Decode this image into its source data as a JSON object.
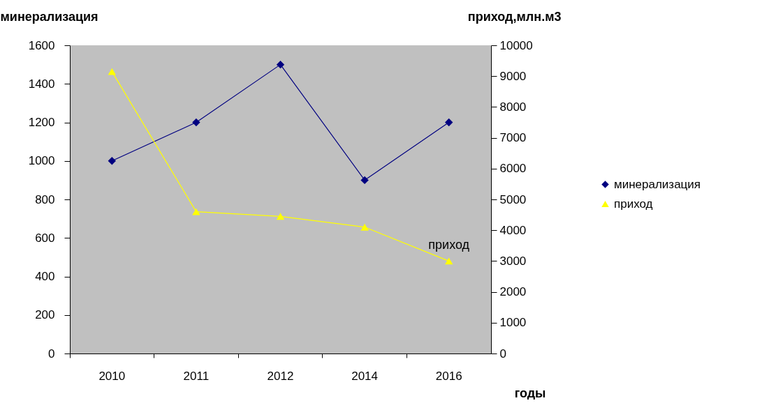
{
  "chart_data": {
    "type": "line",
    "ylabel": "минерализация",
    "y2label": "приход,млн.м3",
    "xlabel": "годы",
    "categories": [
      "2010",
      "2011",
      "2012",
      "2014",
      "2016"
    ],
    "series": [
      {
        "name": "минерализация",
        "color": "#000080",
        "marker": "diamond",
        "values": [
          1000,
          1200,
          1500,
          900,
          1200
        ]
      },
      {
        "name": "приход",
        "color": "#ffff00",
        "marker": "triangle",
        "axis": "y2",
        "values": [
          9150,
          4600,
          4450,
          4100,
          3000
        ]
      }
    ],
    "ylim": [
      0,
      1600
    ],
    "yticks": [
      0,
      200,
      400,
      600,
      800,
      1000,
      1200,
      1400,
      1600
    ],
    "y2lim": [
      0,
      10000
    ],
    "y2ticks": [
      0,
      1000,
      2000,
      3000,
      4000,
      5000,
      6000,
      7000,
      8000,
      9000,
      10000
    ],
    "annotations": [
      "приход"
    ],
    "legend": "right",
    "grid": false
  }
}
